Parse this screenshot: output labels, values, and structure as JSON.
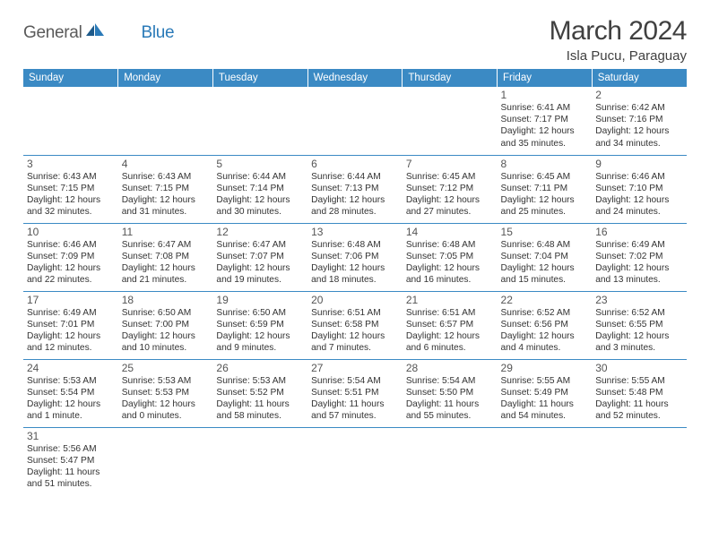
{
  "logo": {
    "part1": "General",
    "part2": "Blue"
  },
  "title": "March 2024",
  "location": "Isla Pucu, Paraguay",
  "day_headers": [
    "Sunday",
    "Monday",
    "Tuesday",
    "Wednesday",
    "Thursday",
    "Friday",
    "Saturday"
  ],
  "colors": {
    "header_bg": "#3b8ac4",
    "header_text": "#ffffff",
    "cell_border": "#3b8ac4",
    "logo_gray": "#5a5a5a",
    "logo_blue": "#2a7ab8",
    "title_text": "#404040",
    "body_text": "#333333"
  },
  "weeks": [
    [
      null,
      null,
      null,
      null,
      null,
      {
        "n": "1",
        "sr": "Sunrise: 6:41 AM",
        "ss": "Sunset: 7:17 PM",
        "d1": "Daylight: 12 hours",
        "d2": "and 35 minutes."
      },
      {
        "n": "2",
        "sr": "Sunrise: 6:42 AM",
        "ss": "Sunset: 7:16 PM",
        "d1": "Daylight: 12 hours",
        "d2": "and 34 minutes."
      }
    ],
    [
      {
        "n": "3",
        "sr": "Sunrise: 6:43 AM",
        "ss": "Sunset: 7:15 PM",
        "d1": "Daylight: 12 hours",
        "d2": "and 32 minutes."
      },
      {
        "n": "4",
        "sr": "Sunrise: 6:43 AM",
        "ss": "Sunset: 7:15 PM",
        "d1": "Daylight: 12 hours",
        "d2": "and 31 minutes."
      },
      {
        "n": "5",
        "sr": "Sunrise: 6:44 AM",
        "ss": "Sunset: 7:14 PM",
        "d1": "Daylight: 12 hours",
        "d2": "and 30 minutes."
      },
      {
        "n": "6",
        "sr": "Sunrise: 6:44 AM",
        "ss": "Sunset: 7:13 PM",
        "d1": "Daylight: 12 hours",
        "d2": "and 28 minutes."
      },
      {
        "n": "7",
        "sr": "Sunrise: 6:45 AM",
        "ss": "Sunset: 7:12 PM",
        "d1": "Daylight: 12 hours",
        "d2": "and 27 minutes."
      },
      {
        "n": "8",
        "sr": "Sunrise: 6:45 AM",
        "ss": "Sunset: 7:11 PM",
        "d1": "Daylight: 12 hours",
        "d2": "and 25 minutes."
      },
      {
        "n": "9",
        "sr": "Sunrise: 6:46 AM",
        "ss": "Sunset: 7:10 PM",
        "d1": "Daylight: 12 hours",
        "d2": "and 24 minutes."
      }
    ],
    [
      {
        "n": "10",
        "sr": "Sunrise: 6:46 AM",
        "ss": "Sunset: 7:09 PM",
        "d1": "Daylight: 12 hours",
        "d2": "and 22 minutes."
      },
      {
        "n": "11",
        "sr": "Sunrise: 6:47 AM",
        "ss": "Sunset: 7:08 PM",
        "d1": "Daylight: 12 hours",
        "d2": "and 21 minutes."
      },
      {
        "n": "12",
        "sr": "Sunrise: 6:47 AM",
        "ss": "Sunset: 7:07 PM",
        "d1": "Daylight: 12 hours",
        "d2": "and 19 minutes."
      },
      {
        "n": "13",
        "sr": "Sunrise: 6:48 AM",
        "ss": "Sunset: 7:06 PM",
        "d1": "Daylight: 12 hours",
        "d2": "and 18 minutes."
      },
      {
        "n": "14",
        "sr": "Sunrise: 6:48 AM",
        "ss": "Sunset: 7:05 PM",
        "d1": "Daylight: 12 hours",
        "d2": "and 16 minutes."
      },
      {
        "n": "15",
        "sr": "Sunrise: 6:48 AM",
        "ss": "Sunset: 7:04 PM",
        "d1": "Daylight: 12 hours",
        "d2": "and 15 minutes."
      },
      {
        "n": "16",
        "sr": "Sunrise: 6:49 AM",
        "ss": "Sunset: 7:02 PM",
        "d1": "Daylight: 12 hours",
        "d2": "and 13 minutes."
      }
    ],
    [
      {
        "n": "17",
        "sr": "Sunrise: 6:49 AM",
        "ss": "Sunset: 7:01 PM",
        "d1": "Daylight: 12 hours",
        "d2": "and 12 minutes."
      },
      {
        "n": "18",
        "sr": "Sunrise: 6:50 AM",
        "ss": "Sunset: 7:00 PM",
        "d1": "Daylight: 12 hours",
        "d2": "and 10 minutes."
      },
      {
        "n": "19",
        "sr": "Sunrise: 6:50 AM",
        "ss": "Sunset: 6:59 PM",
        "d1": "Daylight: 12 hours",
        "d2": "and 9 minutes."
      },
      {
        "n": "20",
        "sr": "Sunrise: 6:51 AM",
        "ss": "Sunset: 6:58 PM",
        "d1": "Daylight: 12 hours",
        "d2": "and 7 minutes."
      },
      {
        "n": "21",
        "sr": "Sunrise: 6:51 AM",
        "ss": "Sunset: 6:57 PM",
        "d1": "Daylight: 12 hours",
        "d2": "and 6 minutes."
      },
      {
        "n": "22",
        "sr": "Sunrise: 6:52 AM",
        "ss": "Sunset: 6:56 PM",
        "d1": "Daylight: 12 hours",
        "d2": "and 4 minutes."
      },
      {
        "n": "23",
        "sr": "Sunrise: 6:52 AM",
        "ss": "Sunset: 6:55 PM",
        "d1": "Daylight: 12 hours",
        "d2": "and 3 minutes."
      }
    ],
    [
      {
        "n": "24",
        "sr": "Sunrise: 5:53 AM",
        "ss": "Sunset: 5:54 PM",
        "d1": "Daylight: 12 hours",
        "d2": "and 1 minute."
      },
      {
        "n": "25",
        "sr": "Sunrise: 5:53 AM",
        "ss": "Sunset: 5:53 PM",
        "d1": "Daylight: 12 hours",
        "d2": "and 0 minutes."
      },
      {
        "n": "26",
        "sr": "Sunrise: 5:53 AM",
        "ss": "Sunset: 5:52 PM",
        "d1": "Daylight: 11 hours",
        "d2": "and 58 minutes."
      },
      {
        "n": "27",
        "sr": "Sunrise: 5:54 AM",
        "ss": "Sunset: 5:51 PM",
        "d1": "Daylight: 11 hours",
        "d2": "and 57 minutes."
      },
      {
        "n": "28",
        "sr": "Sunrise: 5:54 AM",
        "ss": "Sunset: 5:50 PM",
        "d1": "Daylight: 11 hours",
        "d2": "and 55 minutes."
      },
      {
        "n": "29",
        "sr": "Sunrise: 5:55 AM",
        "ss": "Sunset: 5:49 PM",
        "d1": "Daylight: 11 hours",
        "d2": "and 54 minutes."
      },
      {
        "n": "30",
        "sr": "Sunrise: 5:55 AM",
        "ss": "Sunset: 5:48 PM",
        "d1": "Daylight: 11 hours",
        "d2": "and 52 minutes."
      }
    ],
    [
      {
        "n": "31",
        "sr": "Sunrise: 5:56 AM",
        "ss": "Sunset: 5:47 PM",
        "d1": "Daylight: 11 hours",
        "d2": "and 51 minutes."
      },
      null,
      null,
      null,
      null,
      null,
      null
    ]
  ]
}
